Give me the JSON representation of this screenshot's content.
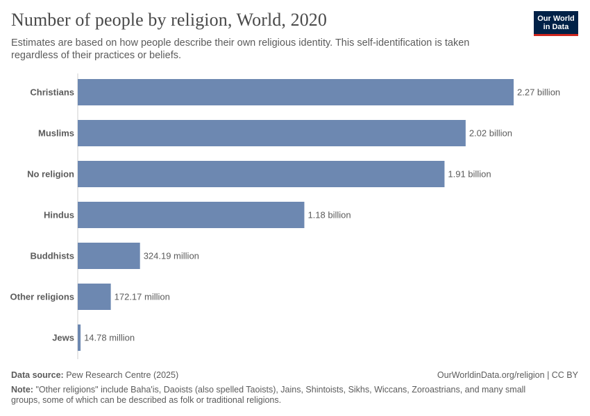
{
  "header": {
    "title": "Number of people by religion, World, 2020",
    "subtitle": "Estimates are based on how people describe their own religious identity. This self-identification is taken regardless of their practices or beliefs.",
    "logo_line1": "Our World",
    "logo_line2": "in Data"
  },
  "footer": {
    "source_label": "Data source:",
    "source_value": "Pew Research Centre (2025)",
    "license": "OurWorldinData.org/religion | CC BY",
    "note_label": "Note:",
    "note_text": "\"Other religions\" include Baha'is, Daoists (also spelled Taoists), Jains, Shintoists, Sikhs, Wiccans, Zoroastrians, and many small groups, some of which can be described as folk or traditional religions."
  },
  "chart_data": {
    "type": "bar",
    "orientation": "horizontal",
    "title": "Number of people by religion, World, 2020",
    "bar_color": "#6d88b1",
    "categories": [
      "Christians",
      "Muslims",
      "No religion",
      "Hindus",
      "Buddhists",
      "Other religions",
      "Jews"
    ],
    "values": [
      2270000000,
      2020000000,
      1910000000,
      1180000000,
      324190000,
      172170000,
      14780000
    ],
    "value_labels": [
      "2.27 billion",
      "2.02 billion",
      "1.91 billion",
      "1.18 billion",
      "324.19 million",
      "172.17 million",
      "14.78 million"
    ],
    "xlim": [
      0,
      2270000000
    ],
    "grid": false,
    "legend": "none"
  }
}
